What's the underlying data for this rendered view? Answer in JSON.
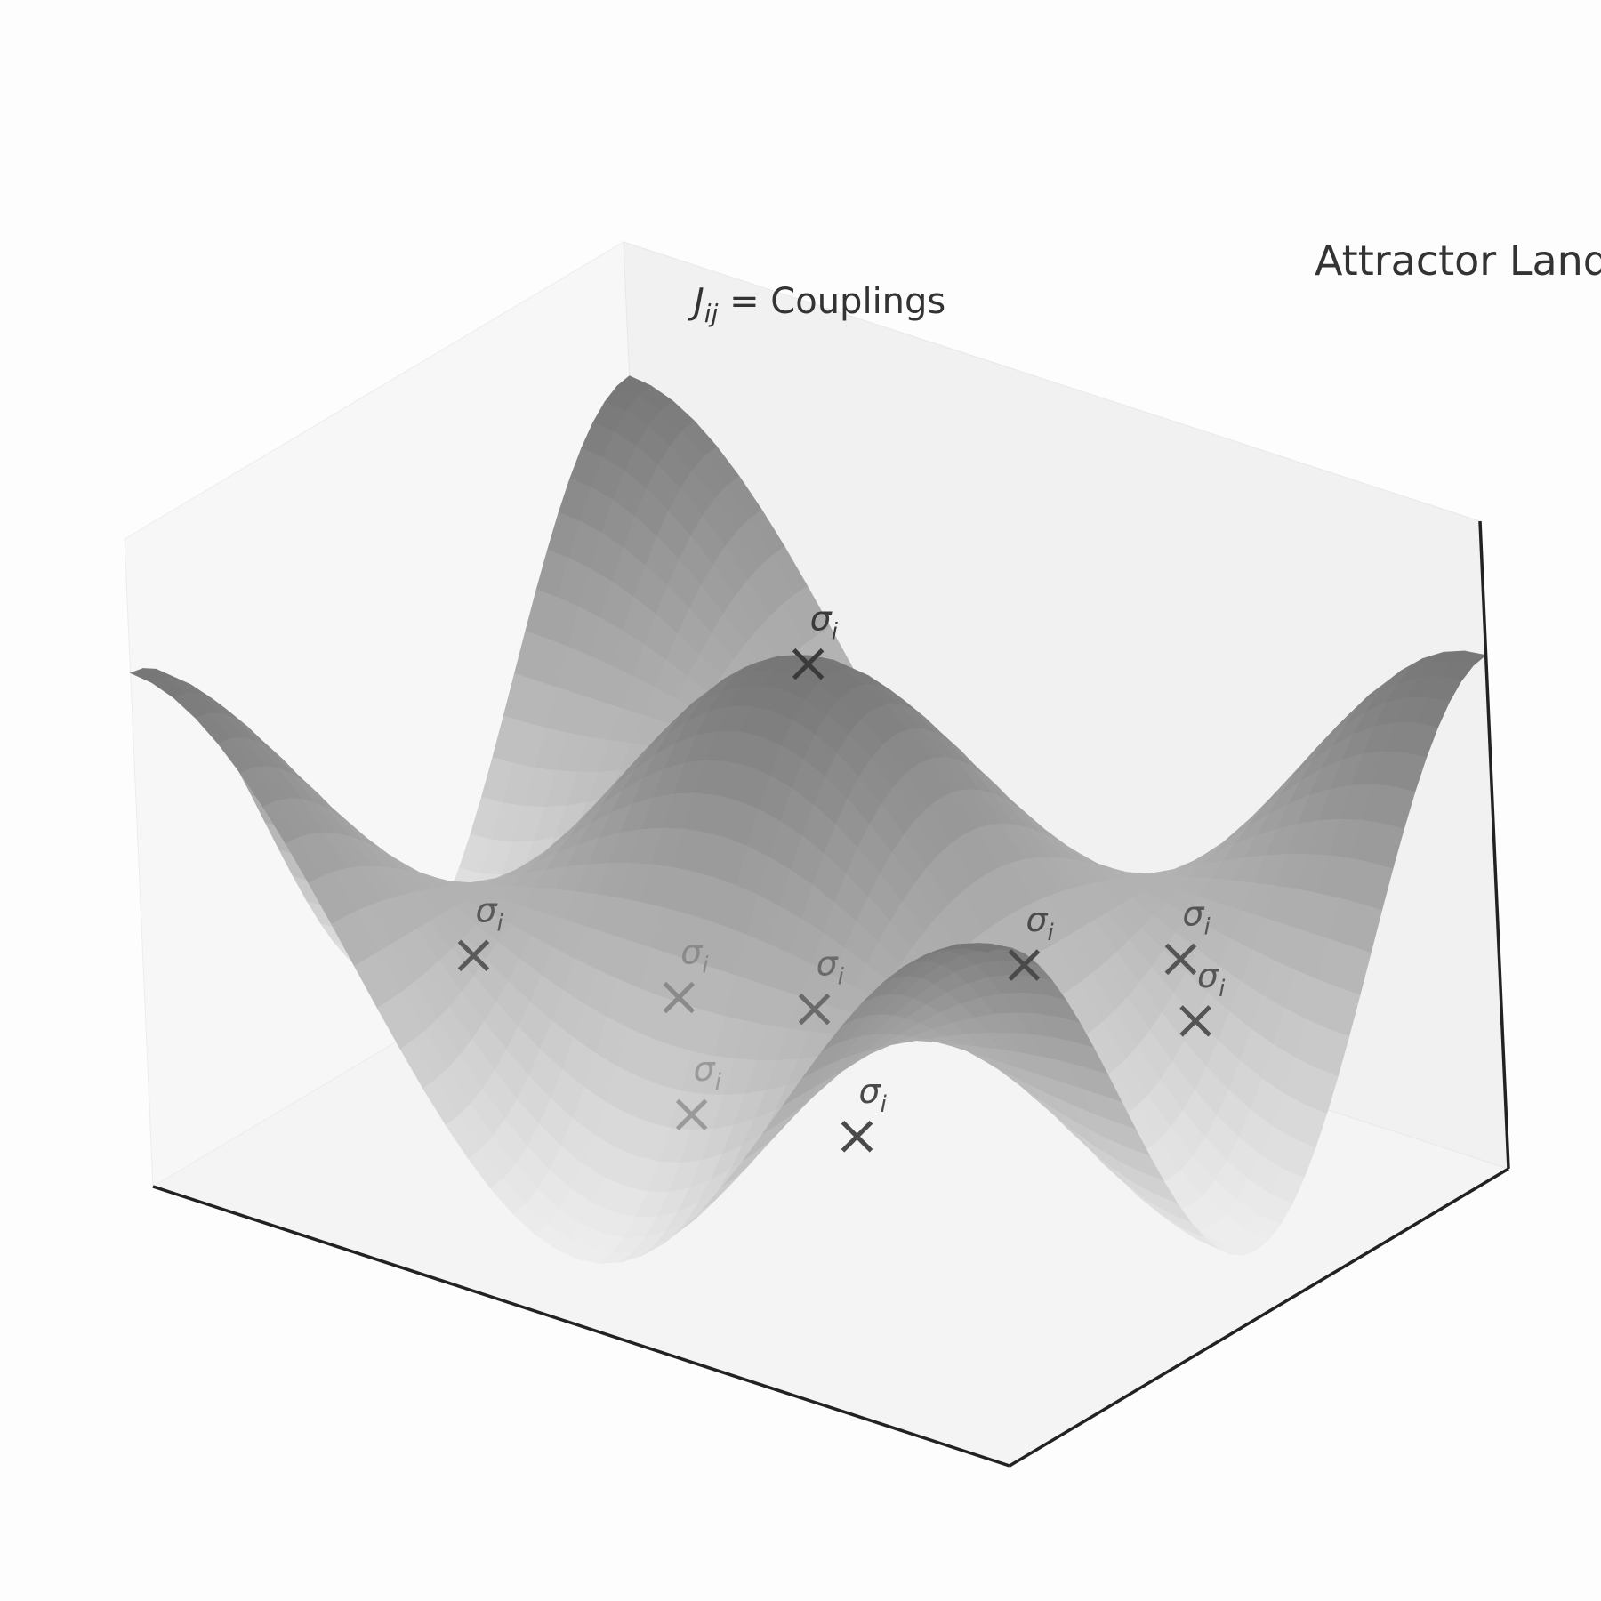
{
  "chart_data": {
    "type": "surface3d",
    "title": "Attractor Landscape",
    "annotation": "J_ij = Couplings",
    "annotation_parts": {
      "symbol": "J",
      "subscript": "ij",
      "text": " = Couplings"
    },
    "grid": false,
    "axes_visible": false,
    "colormap": "grayscale",
    "xlim": [
      -1,
      1
    ],
    "ylim": [
      -1,
      1
    ],
    "zlim": [
      -1.3,
      1.6
    ],
    "surface": {
      "function": "z = cos(pi*x) * cos(pi*y)",
      "x_range": [
        -1,
        1
      ],
      "y_range": [
        -1,
        1
      ],
      "resolution": 40
    },
    "markers": {
      "symbol": "×",
      "label": "σ",
      "label_subscript": "i",
      "points": [
        {
          "x": 0.0,
          "y": 0.0,
          "z": 1.0,
          "shade": "#3a3a3a"
        },
        {
          "x": -0.55,
          "y": -0.45,
          "z": -0.35,
          "shade": "#5a5a5a"
        },
        {
          "x": -0.25,
          "y": -0.15,
          "z": -0.55,
          "shade": "#8a8a8a"
        },
        {
          "x": -0.05,
          "y": -0.45,
          "z": -0.75,
          "shade": "#9a9a9a"
        },
        {
          "x": 0.1,
          "y": -0.2,
          "z": -0.35,
          "shade": "#6a6a6a"
        },
        {
          "x": 0.45,
          "y": 0.05,
          "z": -0.1,
          "shade": "#4a4a4a"
        },
        {
          "x": 0.4,
          "y": -0.55,
          "z": -0.5,
          "shade": "#4a4a4a"
        },
        {
          "x": 0.7,
          "y": 0.25,
          "z": -0.05,
          "shade": "#555555"
        },
        {
          "x": 0.85,
          "y": 0.05,
          "z": -0.1,
          "shade": "#555555"
        }
      ]
    }
  }
}
